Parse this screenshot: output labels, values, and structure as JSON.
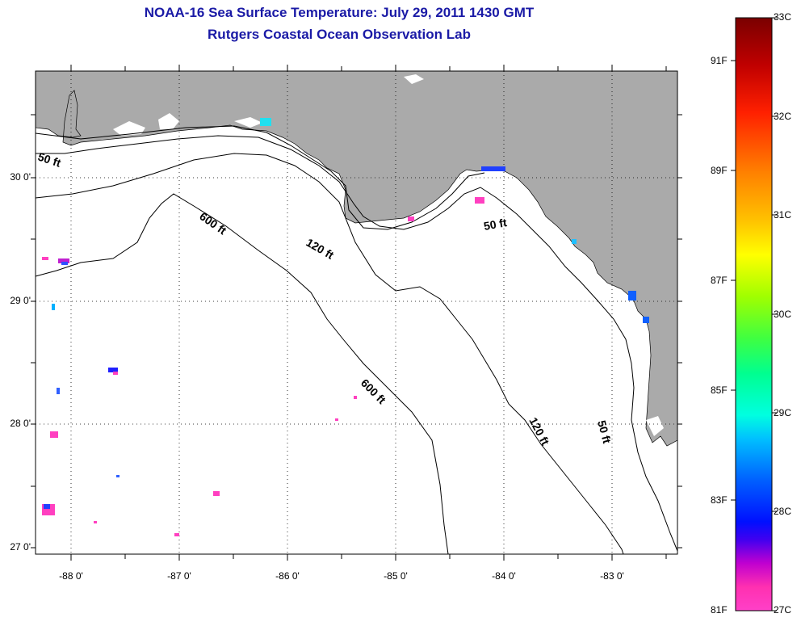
{
  "header": {
    "title": "NOAA-16 Sea Surface Temperature:  July 29, 2011 1430 GMT",
    "subtitle": "Rutgers Coastal Ocean Observation Lab"
  },
  "map": {
    "land_color": "#aaaaaa",
    "water_color": "#ffffff",
    "latitude_labels": [
      "30 0'",
      "29 0'",
      "28 0'",
      "27 0'"
    ],
    "longitude_labels": [
      "-88 0'",
      "-87 0'",
      "-86 0'",
      "-85 0'",
      "-84 0'",
      "-83 0'"
    ],
    "depth_contour_labels": {
      "west_50": "50 ft",
      "c600_north": "600 ft",
      "c120_mid": "120 ft",
      "east_50": "50 ft",
      "c600_south": "600 ft",
      "c120_south": "120 ft",
      "east_50_south": "50 ft"
    },
    "grid": "dotted"
  },
  "colorbar": {
    "fahrenheit_labels": [
      "91F",
      "89F",
      "87F",
      "85F",
      "83F",
      "81F"
    ],
    "celsius_labels": [
      "33C",
      "32C",
      "31C",
      "30C",
      "29C",
      "28C",
      "27C"
    ],
    "scale_colors": [
      "#7a0000",
      "#d40000",
      "#ff3000",
      "#ff8000",
      "#ffc000",
      "#ffff00",
      "#b0ff00",
      "#40ff40",
      "#00ff90",
      "#00ffe0",
      "#00c0ff",
      "#0070ff",
      "#0010ff",
      "#6000e0",
      "#c000d0",
      "#ff30b0",
      "#ff40c0"
    ]
  }
}
